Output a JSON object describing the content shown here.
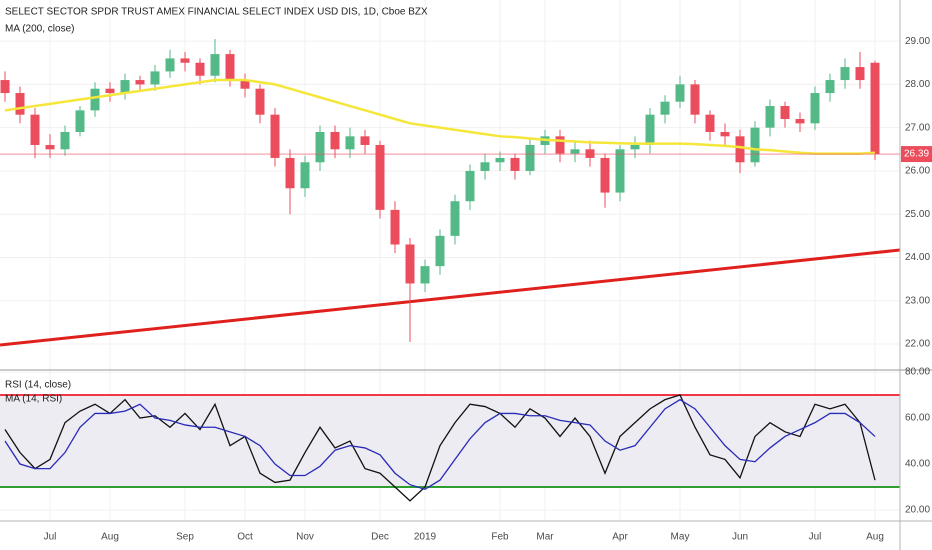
{
  "chart_data": {
    "type": "candlestick",
    "title": "SELECT SECTOR SPDR TRUST AMEX FINANCIAL SELECT INDEX USD DIS, 1D, Cboe BZX",
    "categories": [
      null,
      null,
      null,
      "Jul",
      null,
      null,
      null,
      "Aug",
      null,
      null,
      null,
      null,
      "Sep",
      null,
      null,
      null,
      "Oct",
      null,
      null,
      null,
      "Nov",
      null,
      null,
      null,
      null,
      "Dec",
      null,
      null,
      "2019",
      null,
      null,
      null,
      null,
      "Feb",
      null,
      null,
      "Mar",
      null,
      null,
      null,
      null,
      "Apr",
      null,
      null,
      null,
      "May",
      null,
      null,
      null,
      "Jun",
      null,
      null,
      null,
      null,
      "Jul",
      null,
      null,
      null,
      "Aug"
    ],
    "open": [
      28.1,
      27.8,
      27.3,
      26.6,
      26.5,
      26.9,
      27.4,
      27.9,
      27.8,
      28.1,
      28.0,
      28.3,
      28.6,
      28.5,
      28.2,
      28.7,
      28.1,
      27.9,
      27.3,
      26.3,
      25.6,
      26.2,
      26.9,
      26.5,
      26.8,
      26.6,
      25.1,
      24.3,
      23.4,
      23.8,
      24.5,
      25.3,
      26.0,
      26.2,
      26.3,
      26.0,
      26.6,
      26.8,
      26.4,
      26.5,
      26.3,
      25.5,
      26.5,
      26.6,
      27.3,
      27.6,
      28.0,
      27.3,
      26.9,
      26.8,
      26.2,
      27.0,
      27.5,
      27.2,
      27.1,
      27.8,
      28.1,
      28.4,
      28.5
    ],
    "high": [
      28.3,
      27.95,
      27.45,
      26.85,
      27.05,
      27.5,
      28.05,
      28.05,
      28.25,
      28.2,
      28.45,
      28.8,
      28.75,
      28.6,
      29.05,
      28.8,
      28.25,
      28.0,
      27.45,
      26.5,
      26.35,
      27.05,
      27.05,
      27.0,
      26.95,
      26.7,
      25.3,
      24.45,
      23.95,
      24.65,
      25.45,
      26.15,
      26.4,
      26.45,
      26.4,
      26.75,
      26.95,
      26.95,
      26.7,
      26.7,
      26.4,
      26.6,
      26.8,
      27.45,
      27.75,
      28.2,
      28.1,
      27.4,
      27.1,
      26.95,
      27.15,
      27.65,
      27.6,
      27.35,
      27.95,
      28.25,
      28.6,
      28.75,
      28.55
    ],
    "low": [
      27.6,
      27.1,
      26.3,
      26.3,
      26.35,
      26.8,
      27.25,
      27.6,
      27.65,
      27.85,
      27.85,
      28.15,
      28.3,
      28.0,
      28.05,
      27.95,
      27.7,
      27.1,
      26.1,
      25.0,
      25.4,
      26.0,
      26.3,
      26.3,
      26.4,
      24.9,
      24.1,
      22.05,
      23.2,
      23.6,
      24.3,
      25.1,
      25.8,
      26.0,
      25.8,
      25.9,
      26.4,
      26.2,
      26.2,
      26.1,
      25.15,
      25.3,
      26.3,
      26.4,
      27.1,
      27.45,
      27.1,
      26.7,
      26.6,
      25.95,
      26.1,
      26.8,
      27.0,
      26.9,
      26.95,
      27.6,
      27.9,
      27.9,
      26.25
    ],
    "close": [
      27.8,
      27.3,
      26.6,
      26.5,
      26.9,
      27.4,
      27.9,
      27.8,
      28.1,
      28.0,
      28.3,
      28.6,
      28.5,
      28.2,
      28.7,
      28.1,
      27.9,
      27.3,
      26.3,
      25.6,
      26.2,
      26.9,
      26.5,
      26.8,
      26.6,
      25.1,
      24.3,
      23.4,
      23.8,
      24.5,
      25.3,
      26.0,
      26.2,
      26.3,
      26.0,
      26.6,
      26.8,
      26.4,
      26.5,
      26.3,
      25.5,
      26.5,
      26.6,
      27.3,
      27.6,
      28.0,
      27.3,
      26.9,
      26.8,
      26.2,
      27.0,
      27.5,
      27.2,
      27.1,
      27.8,
      28.1,
      28.4,
      28.1,
      26.39
    ],
    "up_color": "#53b987",
    "down_color": "#eb4d5c",
    "series": [
      {
        "name": "MA (200, close)",
        "color": "#f5e63a",
        "values": [
          27.4,
          27.45,
          27.5,
          27.55,
          27.6,
          27.65,
          27.7,
          27.75,
          27.8,
          27.85,
          27.9,
          27.95,
          28.0,
          28.05,
          28.1,
          28.1,
          28.1,
          28.05,
          28.0,
          27.9,
          27.8,
          27.7,
          27.6,
          27.5,
          27.4,
          27.3,
          27.2,
          27.1,
          27.05,
          27.0,
          26.95,
          26.9,
          26.85,
          26.8,
          26.78,
          26.75,
          26.72,
          26.7,
          26.68,
          26.66,
          26.65,
          26.64,
          26.63,
          26.63,
          26.63,
          26.63,
          26.62,
          26.6,
          26.58,
          26.55,
          26.5,
          26.48,
          26.45,
          26.42,
          26.4,
          26.4,
          26.4,
          26.4,
          26.42
        ]
      }
    ],
    "ylim": [
      21.4,
      29.95
    ],
    "yticks": [
      {
        "value": 22,
        "label": "22.00"
      },
      {
        "value": 23,
        "label": "23.00"
      },
      {
        "value": 24,
        "label": "24.00"
      },
      {
        "value": 25,
        "label": "25.00"
      },
      {
        "value": 26,
        "label": "26.00"
      },
      {
        "value": 27,
        "label": "27.00"
      },
      {
        "value": 28,
        "label": "28.00"
      },
      {
        "value": 29,
        "label": "29.00"
      }
    ],
    "grid": true,
    "rsi": {
      "type": "line",
      "series": [
        {
          "name": "RSI (14, close)",
          "color": "#111111",
          "values": [
            55,
            45,
            38,
            42,
            58,
            63,
            66,
            62,
            68,
            60,
            61,
            56,
            62,
            55,
            66,
            48,
            52,
            36,
            32,
            33,
            45,
            56,
            47,
            50,
            38,
            36,
            30,
            24,
            30,
            48,
            58,
            66,
            65,
            62,
            56,
            64,
            60,
            52,
            60,
            52,
            36,
            52,
            58,
            64,
            68,
            70,
            56,
            44,
            42,
            34,
            52,
            58,
            54,
            52,
            66,
            64,
            66,
            58,
            33
          ]
        },
        {
          "name": "MA (14, RSI)",
          "color": "#2a2ab8",
          "values": [
            50,
            40,
            38,
            38,
            45,
            56,
            62,
            62,
            63,
            66,
            60,
            59,
            57,
            56,
            56,
            54,
            52,
            48,
            40,
            35,
            35,
            39,
            46,
            48,
            47,
            44,
            36,
            31,
            29,
            33,
            42,
            51,
            58,
            62,
            62,
            61,
            61,
            59,
            58,
            57,
            50,
            46,
            48,
            56,
            64,
            68,
            64,
            56,
            48,
            42,
            41,
            47,
            52,
            55,
            58,
            62,
            62,
            58,
            52
          ]
        }
      ],
      "levels": [
        {
          "value": 70,
          "color": "#f23645"
        },
        {
          "value": 30,
          "color": "#2e9e2e"
        }
      ],
      "ylim": [
        15.65,
        80.9
      ],
      "yticks": [
        {
          "value": 20,
          "label": "20.00"
        },
        {
          "value": 40,
          "label": "40.00"
        },
        {
          "value": 60,
          "label": "60.00"
        },
        {
          "value": 80,
          "label": "80.00"
        }
      ]
    }
  }
}
